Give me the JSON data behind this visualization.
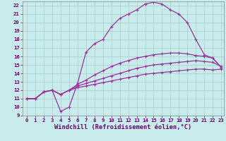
{
  "xlabel": "Windchill (Refroidissement éolien,°C)",
  "background_color": "#c8ecec",
  "line_color": "#993399",
  "grid_color": "#aacccc",
  "xlim": [
    -0.5,
    23.3
  ],
  "ylim": [
    9,
    22.5
  ],
  "xticks": [
    0,
    1,
    2,
    3,
    4,
    5,
    6,
    7,
    8,
    9,
    10,
    11,
    12,
    13,
    14,
    15,
    16,
    17,
    18,
    19,
    20,
    21,
    22,
    23
  ],
  "yticks": [
    9,
    10,
    11,
    12,
    13,
    14,
    15,
    16,
    17,
    18,
    19,
    20,
    21,
    22
  ],
  "line1_x": [
    0,
    1,
    2,
    3,
    4,
    5,
    6,
    7,
    8,
    9,
    10,
    11,
    12,
    13,
    14,
    15,
    16,
    17,
    18,
    19,
    20,
    21,
    22,
    23
  ],
  "line1_y": [
    11.0,
    11.0,
    11.8,
    12.0,
    9.5,
    10.0,
    12.8,
    16.5,
    17.5,
    18.0,
    19.5,
    20.5,
    21.0,
    21.5,
    22.2,
    22.4,
    22.2,
    21.5,
    21.0,
    20.0,
    18.0,
    16.2,
    15.8,
    14.7
  ],
  "line2_x": [
    0,
    1,
    2,
    3,
    4,
    5,
    6,
    7,
    8,
    9,
    10,
    11,
    12,
    13,
    14,
    15,
    16,
    17,
    18,
    19,
    20,
    21,
    22,
    23
  ],
  "line2_y": [
    11.0,
    11.0,
    11.8,
    12.0,
    11.5,
    12.0,
    12.7,
    13.2,
    13.8,
    14.3,
    14.8,
    15.2,
    15.5,
    15.8,
    16.0,
    16.2,
    16.3,
    16.4,
    16.4,
    16.3,
    16.1,
    16.0,
    15.8,
    14.7
  ],
  "line3_x": [
    0,
    1,
    2,
    3,
    4,
    5,
    6,
    7,
    8,
    9,
    10,
    11,
    12,
    13,
    14,
    15,
    16,
    17,
    18,
    19,
    20,
    21,
    22,
    23
  ],
  "line3_y": [
    11.0,
    11.0,
    11.8,
    12.0,
    11.5,
    12.0,
    12.5,
    12.8,
    13.1,
    13.4,
    13.7,
    14.0,
    14.3,
    14.6,
    14.8,
    15.0,
    15.1,
    15.2,
    15.3,
    15.4,
    15.5,
    15.4,
    15.3,
    14.8
  ],
  "line4_x": [
    0,
    1,
    2,
    3,
    4,
    5,
    6,
    7,
    8,
    9,
    10,
    11,
    12,
    13,
    14,
    15,
    16,
    17,
    18,
    19,
    20,
    21,
    22,
    23
  ],
  "line4_y": [
    11.0,
    11.0,
    11.8,
    12.0,
    11.5,
    12.0,
    12.3,
    12.5,
    12.7,
    12.9,
    13.1,
    13.3,
    13.5,
    13.7,
    13.9,
    14.0,
    14.1,
    14.2,
    14.3,
    14.4,
    14.5,
    14.5,
    14.4,
    14.5
  ],
  "marker": "+",
  "markersize": 3,
  "linewidth": 0.9,
  "tick_fontsize": 5.2,
  "xlabel_fontsize": 6.2,
  "spine_color": "#888888"
}
